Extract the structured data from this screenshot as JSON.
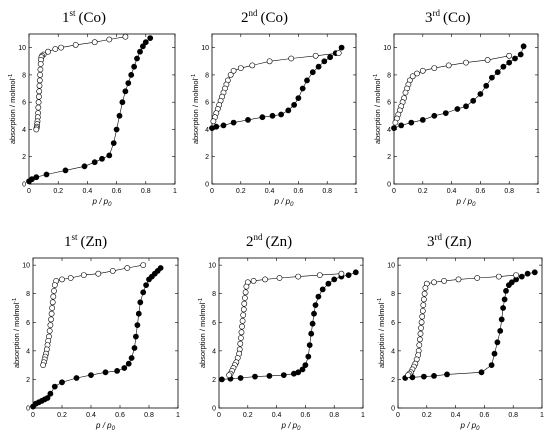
{
  "chart_data": [
    {
      "type": "scatter",
      "title_num": "1",
      "title_sup": "st",
      "title_metal": "(Co)",
      "xlabel_p": "p / p",
      "xlabel_sub": "0",
      "ylabel": "absorption / molmol",
      "ylabel_sup": "-1",
      "xlim": [
        0,
        1
      ],
      "ylim": [
        0,
        11
      ],
      "xticks": [
        "0",
        "0.2",
        "0.4",
        "0.6",
        "0.8",
        "1"
      ],
      "yticks": [
        "0",
        "2",
        "4",
        "6",
        "8",
        "10"
      ],
      "series": [
        {
          "marker": "filled",
          "x": [
            0.0,
            0.02,
            0.05,
            0.12,
            0.25,
            0.38,
            0.45,
            0.5,
            0.55,
            0.58,
            0.6,
            0.62,
            0.64,
            0.66,
            0.68,
            0.7,
            0.72,
            0.74,
            0.76,
            0.78,
            0.8,
            0.83
          ],
          "y": [
            0.2,
            0.35,
            0.5,
            0.7,
            1.0,
            1.3,
            1.6,
            1.85,
            2.1,
            3.0,
            4.0,
            5.0,
            6.0,
            6.8,
            7.4,
            8.0,
            8.6,
            9.2,
            9.7,
            10.1,
            10.4,
            10.7
          ]
        },
        {
          "marker": "open",
          "x": [
            0.66,
            0.55,
            0.45,
            0.32,
            0.22,
            0.18,
            0.13,
            0.1,
            0.09,
            0.085,
            0.082,
            0.08,
            0.078,
            0.076,
            0.074,
            0.072,
            0.07,
            0.068,
            0.066,
            0.064,
            0.062,
            0.06,
            0.058,
            0.056,
            0.054,
            0.052,
            0.05
          ],
          "y": [
            10.8,
            10.6,
            10.4,
            10.2,
            10.0,
            9.9,
            9.7,
            9.5,
            9.4,
            9.3,
            9.1,
            8.8,
            8.4,
            8.0,
            7.6,
            7.2,
            6.8,
            6.4,
            6.0,
            5.6,
            5.2,
            4.9,
            4.6,
            4.4,
            4.2,
            4.1,
            4.0
          ]
        }
      ]
    },
    {
      "type": "scatter",
      "title_num": "2",
      "title_sup": "nd",
      "title_metal": "(Co)",
      "xlabel_p": "p / p",
      "xlabel_sub": "0",
      "ylabel": "absorption / molmol",
      "ylabel_sup": "-1",
      "xlim": [
        0,
        1
      ],
      "ylim": [
        0,
        11
      ],
      "xticks": [
        "0",
        "0.2",
        "0.4",
        "0.6",
        "0.8",
        "1"
      ],
      "yticks": [
        "0",
        "2",
        "4",
        "6",
        "8",
        "10"
      ],
      "series": [
        {
          "marker": "filled",
          "x": [
            0.0,
            0.03,
            0.08,
            0.15,
            0.25,
            0.35,
            0.42,
            0.48,
            0.53,
            0.57,
            0.6,
            0.63,
            0.66,
            0.7,
            0.74,
            0.78,
            0.82,
            0.86,
            0.9
          ],
          "y": [
            4.1,
            4.2,
            4.3,
            4.5,
            4.7,
            4.9,
            5.0,
            5.1,
            5.4,
            5.8,
            6.3,
            7.0,
            7.6,
            8.2,
            8.6,
            9.0,
            9.3,
            9.6,
            10.0
          ]
        },
        {
          "marker": "open",
          "x": [
            0.88,
            0.72,
            0.55,
            0.4,
            0.28,
            0.2,
            0.15,
            0.13,
            0.11,
            0.1,
            0.09,
            0.08,
            0.07,
            0.06,
            0.05,
            0.04,
            0.03,
            0.02,
            0.01
          ],
          "y": [
            9.6,
            9.4,
            9.2,
            9.0,
            8.7,
            8.5,
            8.3,
            8.0,
            7.6,
            7.3,
            7.0,
            6.7,
            6.4,
            6.1,
            5.8,
            5.5,
            5.2,
            4.9,
            4.6
          ]
        }
      ]
    },
    {
      "type": "scatter",
      "title_num": "3",
      "title_sup": "rd",
      "title_metal": "(Co)",
      "xlabel_p": "p / p",
      "xlabel_sub": "0",
      "ylabel": "absorption / molmol",
      "ylabel_sup": "-1",
      "xlim": [
        0,
        1
      ],
      "ylim": [
        0,
        11
      ],
      "xticks": [
        "0",
        "0.2",
        "0.4",
        "0.6",
        "0.8",
        "1"
      ],
      "yticks": [
        "0",
        "2",
        "4",
        "6",
        "8",
        "10"
      ],
      "series": [
        {
          "marker": "filled",
          "x": [
            0.0,
            0.05,
            0.12,
            0.2,
            0.28,
            0.36,
            0.44,
            0.5,
            0.55,
            0.6,
            0.64,
            0.68,
            0.72,
            0.76,
            0.8,
            0.84,
            0.88,
            0.9
          ],
          "y": [
            4.1,
            4.3,
            4.5,
            4.7,
            5.0,
            5.2,
            5.5,
            5.7,
            6.1,
            6.6,
            7.2,
            7.8,
            8.2,
            8.6,
            8.9,
            9.2,
            9.5,
            10.1
          ]
        },
        {
          "marker": "open",
          "x": [
            0.8,
            0.65,
            0.5,
            0.38,
            0.28,
            0.2,
            0.16,
            0.13,
            0.11,
            0.1,
            0.09,
            0.08,
            0.07,
            0.06,
            0.05,
            0.04,
            0.03,
            0.02,
            0.01
          ],
          "y": [
            9.4,
            9.1,
            8.9,
            8.7,
            8.5,
            8.3,
            8.1,
            7.9,
            7.6,
            7.3,
            7.0,
            6.7,
            6.3,
            6.0,
            5.7,
            5.4,
            5.1,
            4.8,
            4.5
          ]
        }
      ]
    },
    {
      "type": "scatter",
      "title_num": "1",
      "title_sup": "st",
      "title_metal": "(Zn)",
      "xlabel_p": "p / p",
      "xlabel_sub": "0",
      "ylabel": "absorption / molmol",
      "ylabel_sup": "-1",
      "xlim": [
        0,
        1
      ],
      "ylim": [
        0,
        10.5
      ],
      "xticks": [
        "0",
        "0.2",
        "0.4",
        "0.6",
        "0.8",
        "1"
      ],
      "yticks": [
        "0",
        "2",
        "4",
        "6",
        "8",
        "10"
      ],
      "series": [
        {
          "marker": "filled",
          "x": [
            0.0,
            0.02,
            0.04,
            0.06,
            0.08,
            0.1,
            0.12,
            0.15,
            0.2,
            0.3,
            0.4,
            0.5,
            0.58,
            0.63,
            0.66,
            0.68,
            0.7,
            0.71,
            0.72,
            0.73,
            0.74,
            0.76,
            0.78,
            0.8,
            0.82,
            0.84,
            0.86,
            0.88
          ],
          "y": [
            0.1,
            0.3,
            0.4,
            0.5,
            0.6,
            0.7,
            1.0,
            1.5,
            1.8,
            2.1,
            2.3,
            2.5,
            2.6,
            2.8,
            3.1,
            3.5,
            4.2,
            5.0,
            5.8,
            6.6,
            7.4,
            8.1,
            8.6,
            9.0,
            9.2,
            9.4,
            9.6,
            9.8
          ]
        },
        {
          "marker": "open",
          "x": [
            0.76,
            0.65,
            0.55,
            0.45,
            0.35,
            0.26,
            0.2,
            0.16,
            0.15,
            0.145,
            0.14,
            0.136,
            0.132,
            0.128,
            0.124,
            0.12,
            0.115,
            0.11,
            0.105,
            0.1,
            0.095,
            0.09,
            0.085,
            0.08,
            0.075,
            0.07
          ],
          "y": [
            10.0,
            9.8,
            9.6,
            9.4,
            9.3,
            9.1,
            9.0,
            8.9,
            8.6,
            8.2,
            7.8,
            7.4,
            7.0,
            6.6,
            6.2,
            5.8,
            5.4,
            5.0,
            4.7,
            4.4,
            4.1,
            3.8,
            3.6,
            3.4,
            3.2,
            3.0
          ]
        }
      ]
    },
    {
      "type": "scatter",
      "title_num": "2",
      "title_sup": "nd",
      "title_metal": "(Zn)",
      "xlabel_p": "p / p",
      "xlabel_sub": "0",
      "ylabel": "absorption / molmol",
      "ylabel_sup": "-1",
      "xlim": [
        0,
        1
      ],
      "ylim": [
        0,
        10.5
      ],
      "xticks": [
        "0",
        "0.2",
        "0.4",
        "0.6",
        "0.8",
        "1"
      ],
      "yticks": [
        "0",
        "2",
        "4",
        "6",
        "8",
        "10"
      ],
      "series": [
        {
          "marker": "filled",
          "x": [
            0.02,
            0.08,
            0.15,
            0.25,
            0.35,
            0.45,
            0.52,
            0.55,
            0.58,
            0.6,
            0.62,
            0.63,
            0.64,
            0.65,
            0.66,
            0.67,
            0.69,
            0.72,
            0.76,
            0.8,
            0.85,
            0.9,
            0.95
          ],
          "y": [
            2.0,
            2.05,
            2.1,
            2.2,
            2.25,
            2.3,
            2.4,
            2.5,
            2.7,
            3.0,
            3.6,
            4.4,
            5.2,
            5.9,
            6.6,
            7.2,
            7.8,
            8.3,
            8.7,
            9.0,
            9.2,
            9.3,
            9.5
          ]
        },
        {
          "marker": "open",
          "x": [
            0.85,
            0.7,
            0.55,
            0.42,
            0.32,
            0.24,
            0.2,
            0.19,
            0.185,
            0.18,
            0.176,
            0.172,
            0.168,
            0.164,
            0.16,
            0.156,
            0.152,
            0.148,
            0.144,
            0.14,
            0.13,
            0.12,
            0.11,
            0.1,
            0.09,
            0.08,
            0.07
          ],
          "y": [
            9.4,
            9.3,
            9.2,
            9.1,
            9.0,
            8.9,
            8.8,
            8.5,
            8.1,
            7.7,
            7.3,
            6.9,
            6.5,
            6.1,
            5.7,
            5.3,
            4.9,
            4.5,
            4.1,
            3.8,
            3.5,
            3.2,
            3.0,
            2.8,
            2.6,
            2.4,
            2.3
          ]
        }
      ]
    },
    {
      "type": "scatter",
      "title_num": "3",
      "title_sup": "rd",
      "title_metal": "(Zn)",
      "xlabel_p": "p / p",
      "xlabel_sub": "0",
      "ylabel": "absorption / molmol",
      "ylabel_sup": "-1",
      "xlim": [
        0,
        1
      ],
      "ylim": [
        0,
        10.5
      ],
      "xticks": [
        "0",
        "0.2",
        "0.4",
        "0.6",
        "0.8",
        "1"
      ],
      "yticks": [
        "0",
        "2",
        "4",
        "6",
        "8",
        "10"
      ],
      "series": [
        {
          "marker": "filled",
          "x": [
            0.05,
            0.1,
            0.18,
            0.25,
            0.34,
            0.58,
            0.65,
            0.67,
            0.69,
            0.71,
            0.72,
            0.73,
            0.74,
            0.75,
            0.77,
            0.79,
            0.82,
            0.86,
            0.9,
            0.95
          ],
          "y": [
            2.1,
            2.15,
            2.2,
            2.25,
            2.35,
            2.5,
            3.0,
            3.8,
            4.6,
            5.4,
            6.2,
            7.0,
            7.6,
            8.2,
            8.6,
            8.8,
            9.0,
            9.2,
            9.4,
            9.5
          ]
        },
        {
          "marker": "open",
          "x": [
            0.82,
            0.7,
            0.55,
            0.42,
            0.32,
            0.25,
            0.2,
            0.19,
            0.185,
            0.18,
            0.176,
            0.172,
            0.168,
            0.164,
            0.16,
            0.156,
            0.152,
            0.148,
            0.144,
            0.14,
            0.13,
            0.12,
            0.11,
            0.1,
            0.09,
            0.08,
            0.07
          ],
          "y": [
            9.3,
            9.2,
            9.1,
            9.0,
            8.9,
            8.8,
            8.7,
            8.4,
            8.0,
            7.6,
            7.2,
            6.8,
            6.4,
            6.0,
            5.6,
            5.2,
            4.8,
            4.4,
            4.0,
            3.7,
            3.4,
            3.1,
            2.9,
            2.7,
            2.5,
            2.4,
            2.3
          ]
        }
      ]
    }
  ]
}
